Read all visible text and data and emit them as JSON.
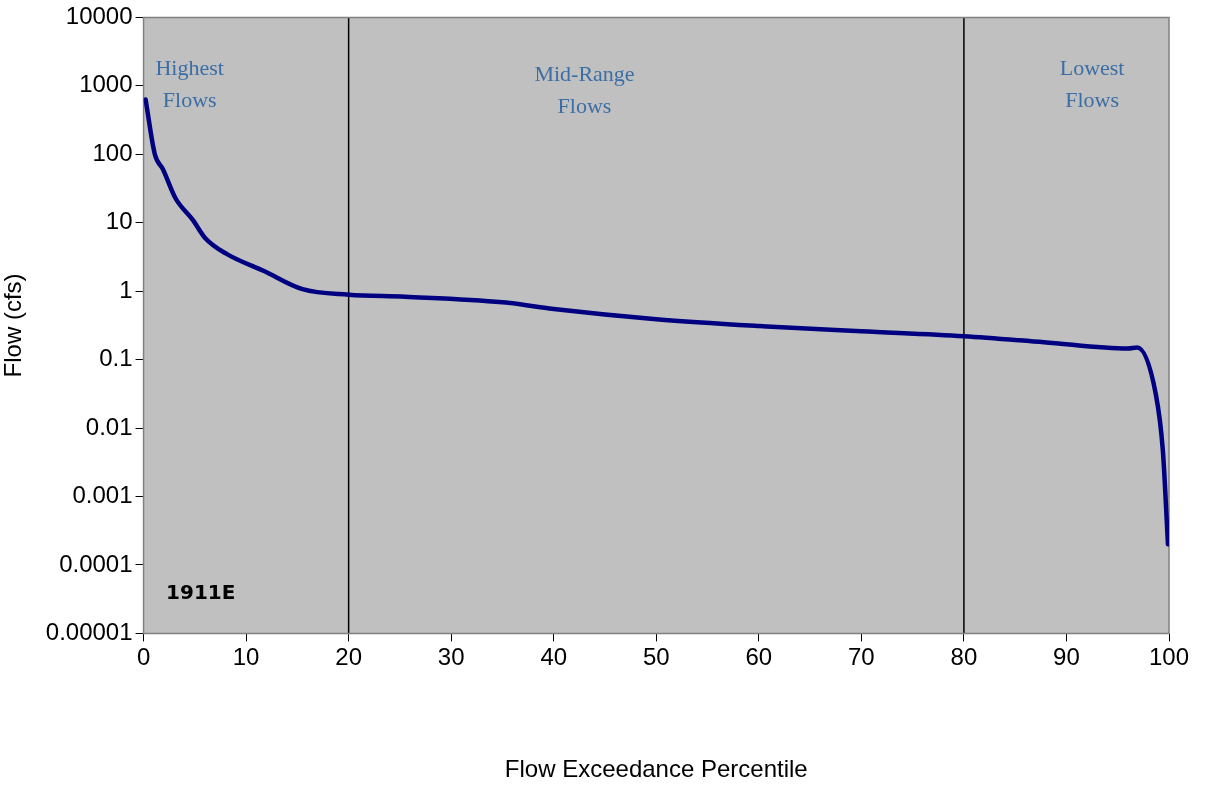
{
  "chart_data": {
    "type": "line",
    "xlabel": "Flow Exceedance Percentile",
    "ylabel": "Flow (cfs)",
    "log": "y",
    "grid": false,
    "legend": false,
    "marker": "none",
    "line_style": "solid",
    "xlim": [
      0,
      100
    ],
    "xticks": [
      0,
      10,
      20,
      30,
      40,
      50,
      60,
      70,
      80,
      90,
      100
    ],
    "ylim": [
      1e-05,
      10000
    ],
    "yticks": [
      {
        "value": 1e-05,
        "label": "0.00001"
      },
      {
        "value": 0.0001,
        "label": "0.0001"
      },
      {
        "value": 0.001,
        "label": "0.001"
      },
      {
        "value": 0.01,
        "label": "0.01"
      },
      {
        "value": 0.1,
        "label": "0.1"
      },
      {
        "value": 1,
        "label": "1"
      },
      {
        "value": 10,
        "label": "10"
      },
      {
        "value": 100,
        "label": "100"
      },
      {
        "value": 1000,
        "label": "1000"
      },
      {
        "value": 10000,
        "label": "10000"
      }
    ],
    "series": [
      {
        "color": "#000080",
        "x": [
          0.2,
          1.1,
          1.9,
          3.1,
          4.8,
          6.0,
          8.1,
          11.8,
          15.5,
          20,
          25.5,
          35,
          40,
          50,
          60,
          70,
          80,
          87.8,
          96,
          96.9,
          98.7,
          99.4,
          99.9
        ],
        "values": [
          630,
          100,
          60,
          23,
          11,
          6,
          3.5,
          1.95,
          1.07,
          0.89,
          0.83,
          0.69,
          0.55,
          0.39,
          0.31,
          0.26,
          0.22,
          0.18,
          0.145,
          0.15,
          0.032,
          0.0047,
          0.0002
        ]
      }
    ],
    "ref_lines": [
      {
        "axis": "x",
        "value": 20,
        "color": "#000000"
      },
      {
        "axis": "x",
        "value": 80,
        "color": "#000000"
      }
    ],
    "annotations": [
      "Highest Flows",
      "Mid-Range Flows",
      "Lowest Flows",
      "1911E"
    ]
  }
}
